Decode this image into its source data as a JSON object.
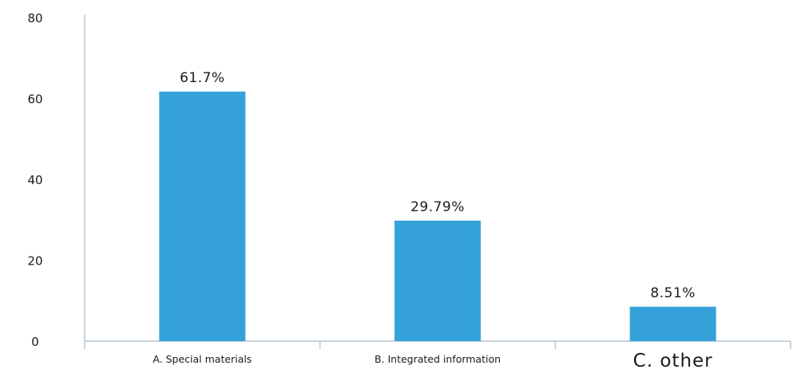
{
  "chart_data": {
    "type": "bar",
    "title": "",
    "xlabel": "",
    "ylabel": "",
    "ylim": [
      0,
      80
    ],
    "yticks": [
      "0",
      "20",
      "40",
      "60",
      "80"
    ],
    "categories": [
      "A. Special materials",
      "B. Integrated information",
      "C. other"
    ],
    "values": [
      61.7,
      29.79,
      8.51
    ],
    "data_labels": [
      "61.7%",
      "29.79%",
      "8.51%"
    ],
    "bar_color": "#35a3da",
    "axis_color": "#c8d3de",
    "grid": false,
    "legend": "none"
  }
}
